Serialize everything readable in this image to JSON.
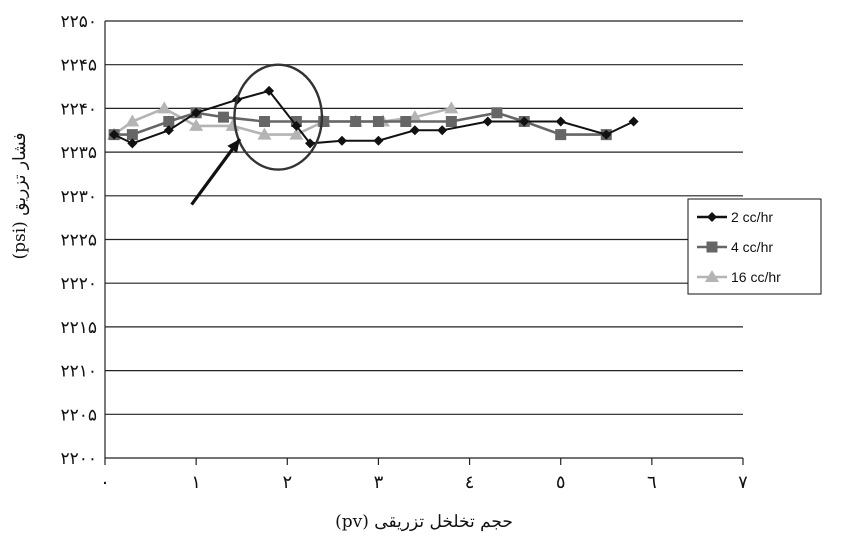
{
  "chart_data": {
    "type": "line",
    "title": "",
    "xlabel": "حجم تخلخل تزریقی (pv)",
    "ylabel": "فشار تزریق (psi)",
    "xlim": [
      0,
      7
    ],
    "ylim": [
      2200,
      2250
    ],
    "x_ticks": [
      0,
      1,
      2,
      3,
      4,
      5,
      6,
      7
    ],
    "y_ticks": [
      2200,
      2205,
      2210,
      2215,
      2220,
      2225,
      2230,
      2235,
      2240,
      2245,
      2250
    ],
    "x_tick_labels": [
      "٠",
      "١",
      "٢",
      "٣",
      "٤",
      "٥",
      "٦",
      "٧"
    ],
    "y_tick_labels": [
      "۲۲۰۰",
      "۲۲۰۵",
      "۲۲۱۰",
      "۲۲۱۵",
      "۲۲۲۰",
      "۲۲۲۵",
      "۲۲۳۰",
      "۲۲۳۵",
      "۲۲۴۰",
      "۲۲۴۵",
      "۲۲۵۰"
    ],
    "grid": "horizontal",
    "legend_position": "right",
    "series": [
      {
        "name": "2 cc/hr",
        "color": "#111111",
        "marker": "diamond",
        "x": [
          0.1,
          0.3,
          0.7,
          1.0,
          1.45,
          1.8,
          2.1,
          2.25,
          2.6,
          3.0,
          3.4,
          3.7,
          4.2,
          4.6,
          5.0,
          5.5,
          5.8
        ],
        "y": [
          2237,
          2236,
          2237.5,
          2239.5,
          2241,
          2242,
          2238,
          2236,
          2236.3,
          2236.3,
          2237.5,
          2237.5,
          2238.5,
          2238.5,
          2238.5,
          2237,
          2238.5
        ]
      },
      {
        "name": "4 cc/hr",
        "color": "#666666",
        "marker": "square",
        "x": [
          0.1,
          0.3,
          0.7,
          1.0,
          1.3,
          1.75,
          2.1,
          2.4,
          2.75,
          3.0,
          3.3,
          3.8,
          4.3,
          4.6,
          5.0,
          5.5
        ],
        "y": [
          2237,
          2237,
          2238.5,
          2239.5,
          2239,
          2238.5,
          2238.5,
          2238.5,
          2238.5,
          2238.5,
          2238.5,
          2238.5,
          2239.5,
          2238.5,
          2237,
          2237
        ]
      },
      {
        "name": "16 cc/hr",
        "color": "#b4b4b4",
        "marker": "triangle",
        "x": [
          0.1,
          0.3,
          0.65,
          1.0,
          1.4,
          1.75,
          2.1,
          2.4,
          2.75,
          3.05,
          3.4,
          3.8
        ],
        "y": [
          2237,
          2238.5,
          2240,
          2238,
          2238,
          2237,
          2237,
          2238.5,
          2238.5,
          2238.5,
          2239,
          2240
        ]
      }
    ],
    "annotations": [
      {
        "type": "ellipse",
        "center_x": 1.9,
        "center_y": 2239,
        "radius_x": 0.48,
        "radius_y": 6
      },
      {
        "type": "arrow",
        "from_x": 0.95,
        "from_y": 2229,
        "to_x": 1.48,
        "to_y": 2236.5
      }
    ]
  }
}
